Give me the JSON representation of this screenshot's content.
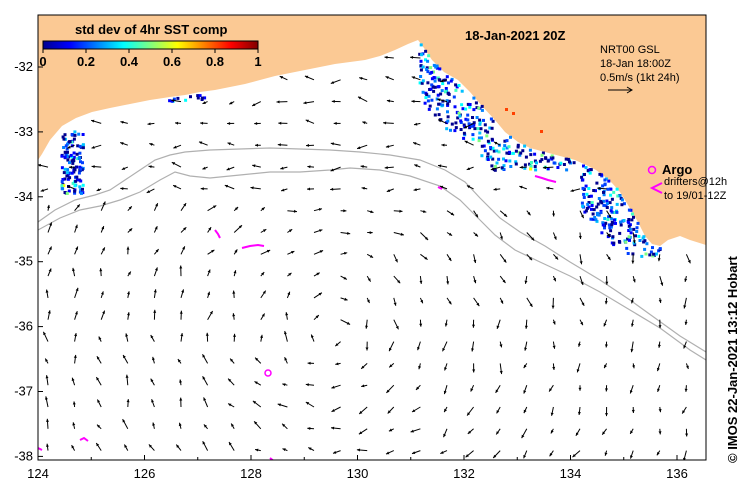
{
  "map": {
    "date_title": "18-Jan-2021 20Z",
    "credit": "© IMOS 22-Jan-2021 13:12 Hobart",
    "colorbar": {
      "title": "std dev of 4hr SST comp",
      "ticks": [
        "0",
        "0.2",
        "0.4",
        "0.6",
        "0.8",
        "1"
      ],
      "colors": [
        "#00008f",
        "#0000ff",
        "#0080ff",
        "#00ffff",
        "#80ff80",
        "#ffff00",
        "#ff8000",
        "#ff0000",
        "#800000"
      ]
    },
    "velocity_legend": {
      "source": "NRT00 GSL",
      "time": "18-Jan 18:00Z",
      "scale": "0.5m/s (1kt 24h)"
    },
    "argo_legend": {
      "argo_label": "Argo",
      "drifter_label1": "drifters@12h",
      "drifter_label2": "to 19/01-12Z"
    },
    "lon_ticks": [
      "124",
      "126",
      "128",
      "130",
      "132",
      "134",
      "136"
    ],
    "lat_ticks": [
      "-32",
      "-33",
      "-34",
      "-35",
      "-36",
      "-37",
      "-38"
    ],
    "colors": {
      "land": "#fbc994",
      "magenta": "#ff00ff",
      "isobath": "#b0b0b0"
    }
  }
}
